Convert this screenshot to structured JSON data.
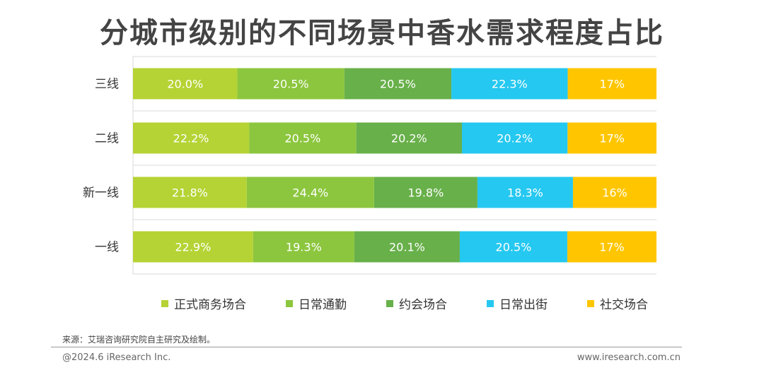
{
  "title": "分城市级别的不同场景中香水需求程度占比",
  "chart_data": {
    "type": "bar",
    "orientation": "horizontal",
    "stacked": true,
    "percent_stacked": true,
    "categories": [
      "三线",
      "二线",
      "新一线",
      "一线"
    ],
    "series": [
      {
        "name": "正式商务场合",
        "color": "#b5d334",
        "values": [
          20.0,
          22.2,
          21.8,
          22.9
        ],
        "labels": [
          "20.0%",
          "22.2%",
          "21.8%",
          "22.9%"
        ]
      },
      {
        "name": "日常通勤",
        "color": "#8cc63e",
        "values": [
          20.5,
          20.5,
          24.4,
          19.3
        ],
        "labels": [
          "20.5%",
          "20.5%",
          "24.4%",
          "19.3%"
        ]
      },
      {
        "name": "约会场合",
        "color": "#68b04a",
        "values": [
          20.5,
          20.2,
          19.8,
          20.1
        ],
        "labels": [
          "20.5%",
          "20.2%",
          "19.8%",
          "20.1%"
        ]
      },
      {
        "name": "日常出街",
        "color": "#25c8f0",
        "values": [
          22.3,
          20.2,
          18.3,
          20.5
        ],
        "labels": [
          "22.3%",
          "20.2%",
          "18.3%",
          "20.5%"
        ]
      },
      {
        "name": "社交场合",
        "color": "#ffc600",
        "values": [
          17,
          17,
          16,
          17
        ],
        "labels": [
          "17%",
          "17%",
          "16%",
          "17%"
        ]
      }
    ],
    "legend_position": "bottom",
    "grid": true
  },
  "footer": {
    "source": "来源：艾瑞咨询研究院自主研究及绘制。",
    "copyright": "@2024.6 iResearch Inc.",
    "website": "www.iresearch.com.cn"
  }
}
